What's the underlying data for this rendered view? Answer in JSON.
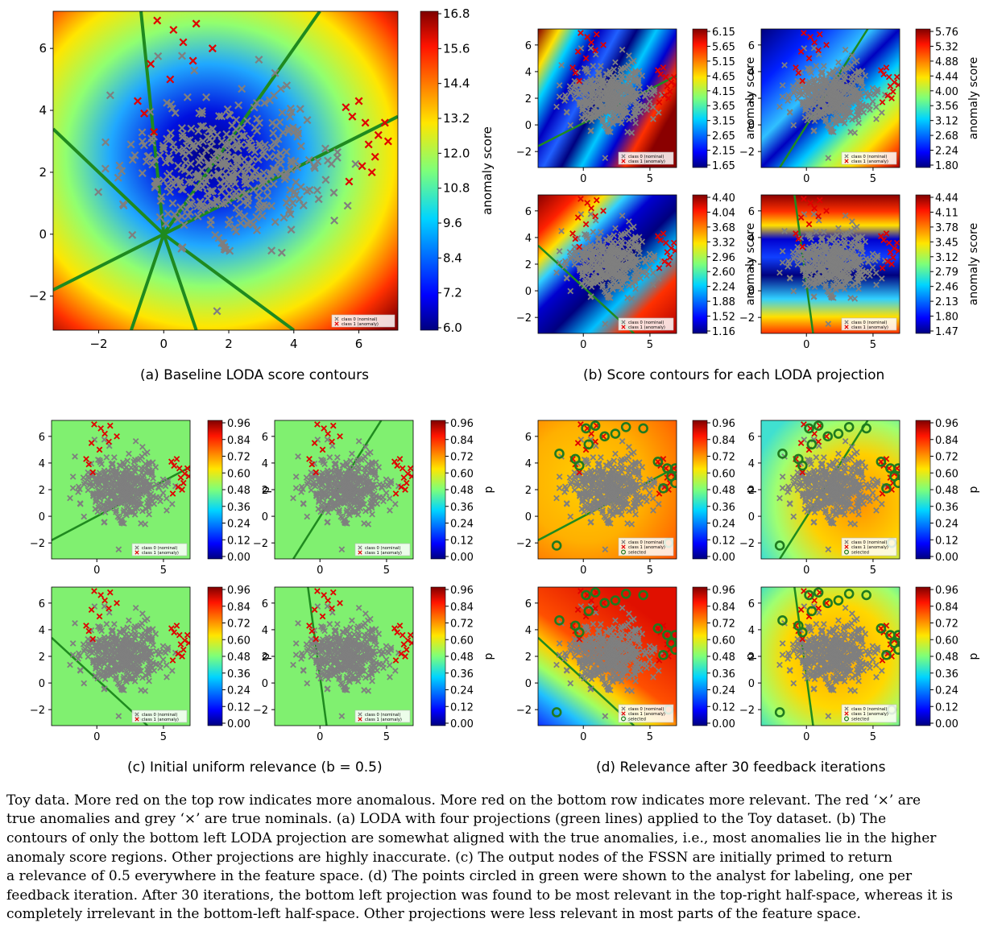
{
  "subcaptions": {
    "a": "(a) Baseline LODA score contours",
    "b": "(b) Score contours for each LODA projection",
    "c": "(c) Initial uniform relevance (b = 0.5)",
    "d": "(d) Relevance after 30 feedback iterations"
  },
  "colorbar_labels": {
    "anomaly": "anomaly score",
    "relevance": "p"
  },
  "legend": {
    "nominal": "class 0 (nominal)",
    "anomaly": "class 1 (anomaly)",
    "selected": "selected"
  },
  "colorbar_ticks": {
    "a": [
      "16.8",
      "15.6",
      "14.4",
      "13.2",
      "12.0",
      "10.8",
      "9.6",
      "8.4",
      "7.2",
      "6.0"
    ],
    "b1": [
      "6.15",
      "5.65",
      "5.15",
      "4.65",
      "4.15",
      "3.65",
      "3.15",
      "2.65",
      "2.15",
      "1.65"
    ],
    "b2": [
      "5.76",
      "5.32",
      "4.88",
      "4.44",
      "4.00",
      "3.56",
      "3.12",
      "2.68",
      "2.24",
      "1.80"
    ],
    "b3": [
      "4.40",
      "4.04",
      "3.68",
      "3.32",
      "2.96",
      "2.60",
      "2.24",
      "1.88",
      "1.52",
      "1.16"
    ],
    "b4": [
      "4.44",
      "4.11",
      "3.78",
      "3.45",
      "3.12",
      "2.79",
      "2.46",
      "2.13",
      "1.80",
      "1.47"
    ],
    "p": [
      "0.96",
      "0.84",
      "0.72",
      "0.60",
      "0.48",
      "0.36",
      "0.24",
      "0.12",
      "0.00"
    ]
  },
  "axis_ticks": {
    "a_x": [
      "−2",
      "0",
      "2",
      "4",
      "6"
    ],
    "a_y": [
      "6",
      "4",
      "2",
      "0",
      "−2"
    ],
    "small_x": [
      "0",
      "5"
    ],
    "small_y": [
      "6",
      "4",
      "2",
      "0",
      "−2"
    ]
  },
  "caption": {
    "lines": [
      "Toy data. More red on the top row indicates more anomalous. More red on the bottom row indicates more relevant. The red ‘×’ are",
      "true anomalies and grey ‘×’ are true nominals. (a) LODA with four projections (green lines) applied to the Toy dataset. (b) The",
      "contours of only the bottom left LODA projection are somewhat aligned with the true anomalies, i.e., most anomalies lie in the higher",
      "anomaly score regions. Other projections are highly inaccurate. (c) The output nodes of the FSSN are initially primed to return",
      "a relevance of 0.5 everywhere in the feature space. (d) The points circled in green were shown to the analyst for labeling, one per",
      "feedback iteration. After 30 iterations, the bottom left projection was found to be most relevant in the top-right half-space, whereas it is",
      "completely irrelevant in the bottom-left half-space. Other projections were less relevant in most parts of the feature space."
    ]
  },
  "colors": {
    "nominal": "#808080",
    "anomaly": "#e00000",
    "projection_line": "#1f8a1f",
    "selected_ring": "#1f7a1f"
  }
}
